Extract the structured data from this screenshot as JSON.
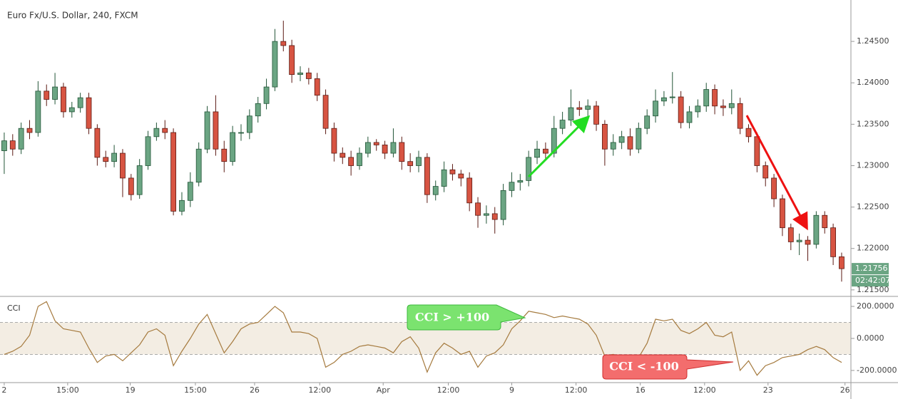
{
  "chart_data": [
    {
      "type": "candlestick",
      "title": "Euro Fx/U.S. Dollar, 240, FXCM",
      "open": [
        1.2318,
        1.233,
        1.232,
        1.2345,
        1.234,
        1.239,
        1.238,
        1.2395,
        1.2365,
        1.237,
        1.2382,
        1.2345,
        1.231,
        1.2305,
        1.2315,
        1.2285,
        1.2265,
        1.23,
        1.2335,
        1.2345,
        1.234,
        1.2245,
        1.2258,
        1.228,
        1.232,
        1.2365,
        1.232,
        1.2305,
        1.234,
        1.234,
        1.236,
        1.2375,
        1.2395,
        1.245,
        1.2445,
        1.241,
        1.2412,
        1.2405,
        1.2385,
        1.2345,
        1.2315,
        1.231,
        1.23,
        1.2315,
        1.2328,
        1.2325,
        1.2315,
        1.2328,
        1.2305,
        1.23,
        1.231,
        1.2265,
        1.2275,
        1.2295,
        1.229,
        1.2285,
        1.2255,
        1.224,
        1.2242,
        1.2235,
        1.227,
        1.228,
        1.2282,
        1.231,
        1.232,
        1.2315,
        1.2345,
        1.2355,
        1.237,
        1.2368,
        1.2372,
        1.235,
        1.232,
        1.2328,
        1.2335,
        1.232,
        1.2345,
        1.236,
        1.2378,
        1.2382,
        1.2383,
        1.2352,
        1.2365,
        1.2372,
        1.2392,
        1.2372,
        1.237,
        1.2375,
        1.2345,
        1.2335,
        1.23,
        1.2285,
        1.226,
        1.2225,
        1.2208,
        1.221,
        1.2205,
        1.224,
        1.2225,
        1.219
      ],
      "high": [
        1.234,
        1.2338,
        1.2352,
        1.2355,
        1.2402,
        1.2398,
        1.2412,
        1.24,
        1.2377,
        1.2388,
        1.2388,
        1.235,
        1.2318,
        1.2325,
        1.232,
        1.229,
        1.2308,
        1.2342,
        1.2352,
        1.2355,
        1.2345,
        1.2268,
        1.2292,
        1.2328,
        1.2372,
        1.2385,
        1.233,
        1.2348,
        1.235,
        1.2368,
        1.2383,
        1.2405,
        1.2465,
        1.2475,
        1.2452,
        1.242,
        1.2418,
        1.2412,
        1.2392,
        1.2352,
        1.2322,
        1.2318,
        1.2322,
        1.2335,
        1.2332,
        1.233,
        1.2345,
        1.2335,
        1.2315,
        1.2318,
        1.2315,
        1.2282,
        1.2305,
        1.2302,
        1.2295,
        1.2292,
        1.2262,
        1.2252,
        1.225,
        1.2278,
        1.2292,
        1.229,
        1.2318,
        1.233,
        1.2328,
        1.236,
        1.2365,
        1.2392,
        1.2378,
        1.238,
        1.2378,
        1.2355,
        1.2338,
        1.2342,
        1.2345,
        1.2352,
        1.2368,
        1.2392,
        1.239,
        1.2413,
        1.239,
        1.2372,
        1.238,
        1.24,
        1.2398,
        1.238,
        1.2392,
        1.2382,
        1.235,
        1.234,
        1.2305,
        1.229,
        1.2265,
        1.223,
        1.2218,
        1.2215,
        1.2245,
        1.2245,
        1.223,
        1.2195
      ],
      "low": [
        1.229,
        1.2312,
        1.2314,
        1.2332,
        1.2335,
        1.2372,
        1.2374,
        1.2358,
        1.2358,
        1.2364,
        1.2338,
        1.23,
        1.2298,
        1.2298,
        1.2262,
        1.2258,
        1.226,
        1.2295,
        1.233,
        1.2332,
        1.224,
        1.224,
        1.225,
        1.2275,
        1.2315,
        1.2312,
        1.2292,
        1.23,
        1.233,
        1.2332,
        1.2352,
        1.2368,
        1.239,
        1.2438,
        1.24,
        1.2402,
        1.2398,
        1.2378,
        1.2338,
        1.2305,
        1.2302,
        1.2288,
        1.2295,
        1.231,
        1.2318,
        1.2308,
        1.231,
        1.2295,
        1.2292,
        1.2292,
        1.2255,
        1.2258,
        1.2268,
        1.2282,
        1.2275,
        1.2245,
        1.2225,
        1.223,
        1.2218,
        1.2228,
        1.2262,
        1.227,
        1.2275,
        1.2302,
        1.2308,
        1.231,
        1.2338,
        1.2348,
        1.236,
        1.2358,
        1.2342,
        1.23,
        1.2312,
        1.232,
        1.2312,
        1.2315,
        1.2338,
        1.2352,
        1.2372,
        1.2375,
        1.2345,
        1.2345,
        1.2358,
        1.2365,
        1.2362,
        1.236,
        1.2362,
        1.2338,
        1.2328,
        1.2292,
        1.2275,
        1.225,
        1.2215,
        1.2198,
        1.2192,
        1.2185,
        1.22,
        1.2218,
        1.218,
        1.216
      ],
      "close": [
        1.233,
        1.232,
        1.2345,
        1.234,
        1.239,
        1.238,
        1.2395,
        1.2365,
        1.237,
        1.2382,
        1.2345,
        1.231,
        1.2305,
        1.2315,
        1.2285,
        1.2265,
        1.23,
        1.2335,
        1.2345,
        1.234,
        1.2245,
        1.2258,
        1.228,
        1.232,
        1.2365,
        1.232,
        1.2305,
        1.234,
        1.234,
        1.236,
        1.2375,
        1.2395,
        1.245,
        1.2445,
        1.241,
        1.2412,
        1.2405,
        1.2385,
        1.2345,
        1.2315,
        1.231,
        1.23,
        1.2315,
        1.2328,
        1.2325,
        1.2315,
        1.2328,
        1.2305,
        1.23,
        1.231,
        1.2265,
        1.2275,
        1.2295,
        1.229,
        1.2285,
        1.2255,
        1.224,
        1.2242,
        1.2235,
        1.227,
        1.228,
        1.2282,
        1.231,
        1.232,
        1.2315,
        1.2345,
        1.2355,
        1.237,
        1.2368,
        1.2372,
        1.235,
        1.232,
        1.2328,
        1.2335,
        1.232,
        1.2345,
        1.236,
        1.2378,
        1.2382,
        1.2383,
        1.2352,
        1.2365,
        1.2372,
        1.2392,
        1.2372,
        1.237,
        1.2375,
        1.2345,
        1.2335,
        1.23,
        1.2285,
        1.226,
        1.2225,
        1.2208,
        1.221,
        1.2205,
        1.224,
        1.2225,
        1.219,
        1.21756
      ],
      "up_color": "#6ba583",
      "down_color": "#d75442",
      "xlim": [
        -0.5,
        100.1
      ],
      "ylim": [
        1.2143,
        1.25
      ],
      "yticks": [
        {
          "value": 1.215,
          "label": "1.21500"
        },
        {
          "value": 1.22,
          "label": "1.22000"
        },
        {
          "value": 1.225,
          "label": "1.22500"
        },
        {
          "value": 1.23,
          "label": "1.23000"
        },
        {
          "value": 1.235,
          "label": "1.23500"
        },
        {
          "value": 1.24,
          "label": "1.24000"
        },
        {
          "value": 1.245,
          "label": "1.24500"
        }
      ],
      "last_price": {
        "value": 1.21756,
        "label": "1.21756"
      },
      "countdown": "02:42:07"
    },
    {
      "type": "line",
      "title": "CCI",
      "color": "#a57a3e",
      "values": [
        -100,
        -80,
        -50,
        20,
        200,
        230,
        110,
        60,
        50,
        40,
        -60,
        -150,
        -110,
        -100,
        -140,
        -90,
        -40,
        40,
        60,
        20,
        -170,
        -80,
        0,
        90,
        150,
        30,
        -90,
        -20,
        60,
        90,
        100,
        150,
        200,
        160,
        40,
        40,
        30,
        0,
        -180,
        -150,
        -100,
        -80,
        -50,
        -40,
        -50,
        -60,
        -90,
        -20,
        10,
        -60,
        -210,
        -90,
        -30,
        -60,
        -100,
        -80,
        -180,
        -110,
        -90,
        -40,
        60,
        110,
        170,
        160,
        150,
        130,
        140,
        130,
        120,
        90,
        20,
        -110,
        -100,
        -120,
        -140,
        -120,
        -30,
        120,
        110,
        120,
        50,
        30,
        60,
        100,
        20,
        10,
        40,
        -200,
        -140,
        -230,
        -170,
        -150,
        -120,
        -110,
        -100,
        -70,
        -50,
        -70,
        -120,
        -150
      ],
      "xlim": [
        -0.5,
        100.1
      ],
      "ylim": [
        -276,
        258
      ],
      "yticks": [
        {
          "value": -200,
          "label": "-200.0000"
        },
        {
          "value": 0,
          "label": "0.0000"
        },
        {
          "value": 200,
          "label": "200.0000"
        }
      ],
      "band": [
        -100,
        100
      ],
      "xticks": [
        {
          "value": 0,
          "label": "2"
        },
        {
          "value": 7.5,
          "label": "15:00"
        },
        {
          "value": 14.9,
          "label": "19"
        },
        {
          "value": 22.6,
          "label": "15:00"
        },
        {
          "value": 29.6,
          "label": "26"
        },
        {
          "value": 37.3,
          "label": "12:00"
        },
        {
          "value": 44.8,
          "label": "Apr"
        },
        {
          "value": 52.5,
          "label": "12:00"
        },
        {
          "value": 60,
          "label": "9"
        },
        {
          "value": 67.6,
          "label": "12:00"
        },
        {
          "value": 75.2,
          "label": "16"
        },
        {
          "value": 82.8,
          "label": "12:00"
        },
        {
          "value": 90.3,
          "label": "23"
        },
        {
          "value": 99.4,
          "label": "26"
        }
      ],
      "annotations": [
        "CCI > +100",
        "CCI < -100"
      ]
    }
  ]
}
